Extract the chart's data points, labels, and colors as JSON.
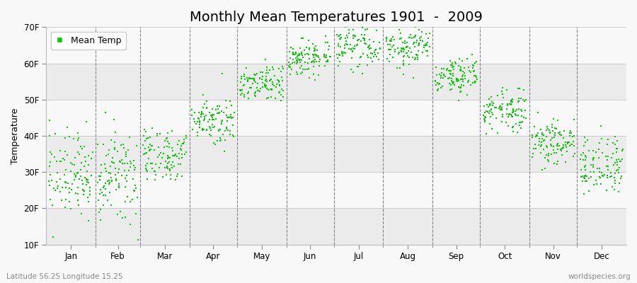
{
  "title": "Monthly Mean Temperatures 1901  -  2009",
  "ylabel": "Temperature",
  "subtitle_left": "Latitude 56.25 Longitude 15.25",
  "subtitle_right": "worldspecies.org",
  "legend_label": "Mean Temp",
  "dot_color": "#00cc00",
  "dot_size": 3,
  "months": [
    "Jan",
    "Feb",
    "Mar",
    "Apr",
    "May",
    "Jun",
    "Jul",
    "Aug",
    "Sep",
    "Oct",
    "Nov",
    "Dec"
  ],
  "month_days": [
    31,
    28,
    31,
    30,
    31,
    30,
    31,
    31,
    30,
    31,
    30,
    31
  ],
  "num_years": 109,
  "start_year": 1901,
  "monthly_means_c": [
    -1.5,
    -2.0,
    1.5,
    7.0,
    12.5,
    16.5,
    18.5,
    18.0,
    13.5,
    8.5,
    3.5,
    0.0
  ],
  "monthly_stds_c": [
    3.2,
    3.5,
    2.2,
    1.8,
    1.5,
    1.5,
    1.8,
    1.8,
    1.5,
    1.6,
    1.8,
    2.2
  ],
  "ylim": [
    10,
    70
  ],
  "yticks": [
    10,
    20,
    30,
    40,
    50,
    60,
    70
  ],
  "ytick_labels": [
    "10F",
    "20F",
    "30F",
    "40F",
    "50F",
    "60F",
    "70F"
  ],
  "bg_color": "#f0f0f0",
  "band_colors_even": "#f5f5f5",
  "band_colors_odd": "#e8e8e8",
  "title_fontsize": 14,
  "axis_fontsize": 9,
  "tick_fontsize": 8.5,
  "legend_fontsize": 9
}
